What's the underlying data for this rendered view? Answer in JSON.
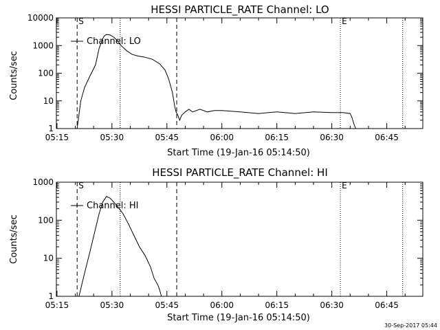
{
  "stamp": "30-Sep-2017 05:44",
  "chart_data": [
    {
      "type": "line",
      "title": "HESSI PARTICLE_RATE Channel: LO",
      "xlabel": "Start Time (19-Jan-16 05:14:50)",
      "ylabel": "Counts/sec",
      "legend": "Channel: LO",
      "legend_position": "top-left",
      "y_scale": "log",
      "ylim": [
        1,
        10000
      ],
      "xlim": [
        "05:14:50",
        "06:54:50"
      ],
      "x_ticks": [
        "05:15",
        "05:30",
        "05:45",
        "06:00",
        "06:15",
        "06:30",
        "06:45"
      ],
      "y_ticks": [
        "1",
        "10",
        "100",
        "1000",
        "10000"
      ],
      "markers": [
        {
          "time": "05:20:30",
          "style": "dashed",
          "label": "S"
        },
        {
          "time": "05:32:15",
          "style": "dotted",
          "label": ""
        },
        {
          "time": "05:47:40",
          "style": "dashed",
          "label": ""
        },
        {
          "time": "06:32:20",
          "style": "dotted",
          "label": "E"
        },
        {
          "time": "06:49:20",
          "style": "dotted",
          "label": ""
        }
      ],
      "series": [
        {
          "x": [
            "05:20:30",
            "05:21:30",
            "05:22:30",
            "05:24:00",
            "05:25:30",
            "05:26:30",
            "05:27:30",
            "05:28:00",
            "05:28:30",
            "05:29:30",
            "05:30:30",
            "05:31:30",
            "05:32:30",
            "05:34:00",
            "05:35:30",
            "05:37:00",
            "05:39:00",
            "05:41:00",
            "05:43:00",
            "05:44:30",
            "05:45:30",
            "05:46:30",
            "05:47:10",
            "05:47:30",
            "05:48:00",
            "05:48:30",
            "05:49:00",
            "05:50:00",
            "05:51:00",
            "05:52:00",
            "05:54:00",
            "05:56:00",
            "05:58:00",
            "06:00:00",
            "06:05:00",
            "06:10:00",
            "06:15:00",
            "06:20:00",
            "06:25:00",
            "06:30:00",
            "06:33:00",
            "06:35:00",
            "06:35:30",
            "06:36:00",
            "06:36:30"
          ],
          "y": [
            1,
            10,
            30,
            80,
            200,
            800,
            1800,
            2300,
            2500,
            2400,
            2000,
            1500,
            1000,
            650,
            480,
            420,
            380,
            320,
            220,
            130,
            60,
            20,
            6,
            4,
            3,
            2,
            3,
            4,
            5,
            4,
            5,
            4,
            4.5,
            4.5,
            4,
            3.5,
            4,
            3.5,
            4,
            3.8,
            3.8,
            3.5,
            2.5,
            1.5,
            1
          ]
        }
      ]
    },
    {
      "type": "line",
      "title": "HESSI PARTICLE_RATE Channel: HI",
      "xlabel": "Start Time (19-Jan-16 05:14:50)",
      "ylabel": "Counts/sec",
      "legend": "Channel: HI",
      "legend_position": "top-left",
      "y_scale": "log",
      "ylim": [
        1,
        1000
      ],
      "xlim": [
        "05:14:50",
        "06:54:50"
      ],
      "x_ticks": [
        "05:15",
        "05:30",
        "05:45",
        "06:00",
        "06:15",
        "06:30",
        "06:45"
      ],
      "y_ticks": [
        "1",
        "10",
        "100",
        "1000"
      ],
      "markers": [
        {
          "time": "05:20:30",
          "style": "dashed",
          "label": "S"
        },
        {
          "time": "05:32:15",
          "style": "dotted",
          "label": ""
        },
        {
          "time": "05:47:40",
          "style": "dashed",
          "label": ""
        },
        {
          "time": "06:32:20",
          "style": "dotted",
          "label": "E"
        },
        {
          "time": "06:49:20",
          "style": "dotted",
          "label": ""
        }
      ],
      "series": [
        {
          "x": [
            "05:21:00",
            "05:22:30",
            "05:24:00",
            "05:25:30",
            "05:26:30",
            "05:27:30",
            "05:28:30",
            "05:29:30",
            "05:30:30",
            "05:31:30",
            "05:33:00",
            "05:34:30",
            "05:36:00",
            "05:37:30",
            "05:39:00",
            "05:40:30",
            "05:41:30",
            "05:42:30",
            "05:43:00",
            "05:43:30"
          ],
          "y": [
            1,
            4,
            15,
            60,
            150,
            300,
            420,
            380,
            300,
            230,
            150,
            80,
            40,
            20,
            12,
            6,
            3,
            2,
            1.5,
            1
          ]
        }
      ]
    }
  ]
}
